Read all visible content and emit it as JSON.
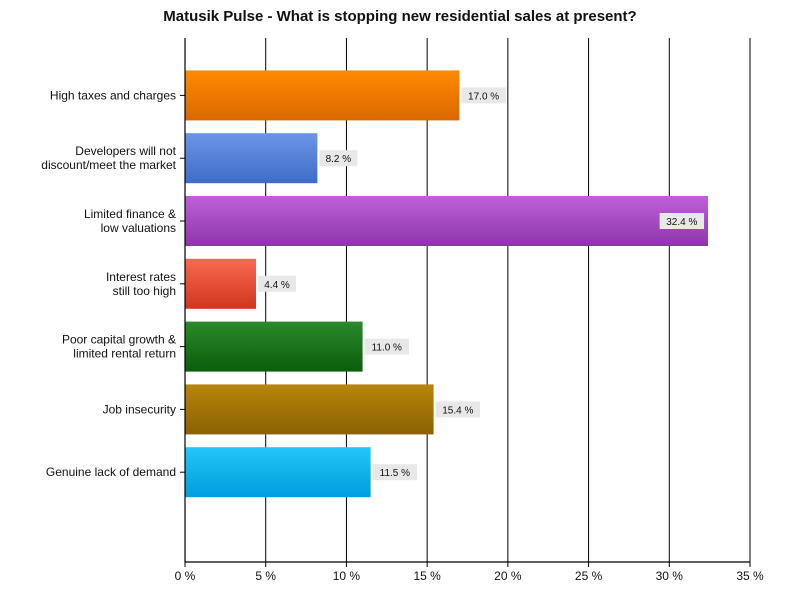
{
  "chart_data": {
    "type": "bar",
    "orientation": "horizontal",
    "title": "Matusik Pulse - What is stopping new residential sales at present?",
    "xlabel": "",
    "ylabel": "",
    "xlim": [
      0,
      35
    ],
    "ticks": [
      0,
      5,
      10,
      15,
      20,
      25,
      30,
      35
    ],
    "tick_labels": [
      "0 %",
      "5 %",
      "10 %",
      "15 %",
      "20 %",
      "25 %",
      "30 %",
      "35 %"
    ],
    "grid": true,
    "legend": "none",
    "categories": [
      [
        "High taxes and charges"
      ],
      [
        "Developers will not",
        "discount/meet the market"
      ],
      [
        "Limited finance &",
        "low valuations"
      ],
      [
        "Interest rates",
        "still too high"
      ],
      [
        "Poor capital growth &",
        "limited rental return"
      ],
      [
        "Job insecurity"
      ],
      [
        "Genuine lack of demand"
      ]
    ],
    "values": [
      17.0,
      8.2,
      32.4,
      4.4,
      11.0,
      15.4,
      11.5
    ],
    "value_labels": [
      "17.0 %",
      "8.2 %",
      "32.4 %",
      "4.4 %",
      "11.0 %",
      "15.4 %",
      "11.5 %"
    ],
    "colors": [
      [
        "#ff8a00",
        "#d96800"
      ],
      [
        "#6b95e6",
        "#3f6cc6"
      ],
      [
        "#c060d8",
        "#8c36aa"
      ],
      [
        "#f86a50",
        "#d0361e"
      ],
      [
        "#2a8a2a",
        "#0b5e0b"
      ],
      [
        "#b8860a",
        "#8a6104"
      ],
      [
        "#22c6f8",
        "#009ede"
      ]
    ]
  }
}
